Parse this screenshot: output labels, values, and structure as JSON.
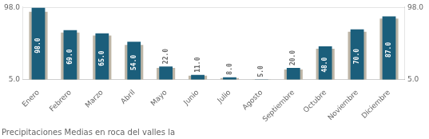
{
  "chart_data": {
    "type": "bar",
    "title": "Precipitaciones Medias en roca del valles la",
    "categories": [
      "Enero",
      "Febrero",
      "Marzo",
      "Abril",
      "Mayo",
      "Junio",
      "Julio",
      "Agosto",
      "Septiembre",
      "Octubre",
      "Noviembre",
      "Diciembre"
    ],
    "series": [
      {
        "color": "#bdb5a6",
        "values": [
          93,
          66,
          62,
          50,
          20,
          10,
          7,
          5,
          18,
          45,
          67,
          84
        ]
      },
      {
        "color": "#1b5e7b",
        "values": [
          98,
          69,
          65,
          54,
          22,
          11,
          8,
          5,
          20,
          48,
          70,
          87
        ],
        "value_labels": [
          "98.0",
          "69.0",
          "65.0",
          "54.0",
          "22.0",
          "11.0",
          "8.0",
          "5.0",
          "20.0",
          "48.0",
          "70.0",
          "87.0"
        ]
      }
    ],
    "ylim": [
      5,
      99.5
    ],
    "yticks": [
      {
        "value": 98,
        "label": "98.0"
      },
      {
        "value": 5,
        "label": "5.0"
      }
    ],
    "grid": true,
    "data_labels": true
  }
}
